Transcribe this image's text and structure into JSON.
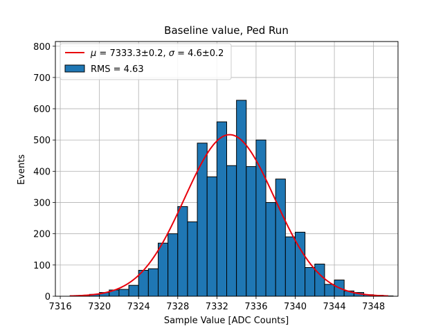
{
  "chart_data": {
    "type": "bar",
    "title": "Baseline value, Ped Run",
    "xlabel": "Sample Value [ADC Counts]",
    "ylabel": "Events",
    "xlim": [
      7315.5,
      7350.5
    ],
    "ylim": [
      0,
      815
    ],
    "grid": true,
    "legend_placement": "top-left",
    "xticks": [
      7316,
      7320,
      7324,
      7328,
      7332,
      7336,
      7340,
      7344,
      7348
    ],
    "yticks": [
      0,
      100,
      200,
      300,
      400,
      500,
      600,
      700,
      800
    ],
    "histogram": {
      "name": "RMS = 4.63",
      "color": "#1f77b4",
      "edgecolor": "#000000",
      "bin_width": 1,
      "bin_starts": [
        7317,
        7318,
        7319,
        7320,
        7321,
        7322,
        7323,
        7324,
        7325,
        7326,
        7327,
        7328,
        7329,
        7330,
        7331,
        7332,
        7333,
        7334,
        7335,
        7336,
        7337,
        7338,
        7339,
        7340,
        7341,
        7342,
        7343,
        7344,
        7345,
        7346,
        7347,
        7348,
        7349
      ],
      "counts": [
        2,
        3,
        6,
        12,
        20,
        22,
        35,
        83,
        88,
        170,
        200,
        287,
        238,
        490,
        382,
        558,
        418,
        627,
        415,
        500,
        300,
        375,
        190,
        205,
        92,
        103,
        38,
        52,
        17,
        12,
        5,
        3,
        1
      ]
    },
    "fit": {
      "name": "μ = 7333.3±0.2, σ = 4.6±0.2",
      "mu_label": "μ",
      "mu_text": " = 7333.3±0.2, ",
      "sigma_label": "σ",
      "sigma_text": " = 4.6±0.2",
      "color": "#e8000b",
      "mu": 7333.3,
      "sigma": 4.6,
      "amplitude": 517,
      "x_range": [
        7317,
        7349.5
      ]
    }
  }
}
